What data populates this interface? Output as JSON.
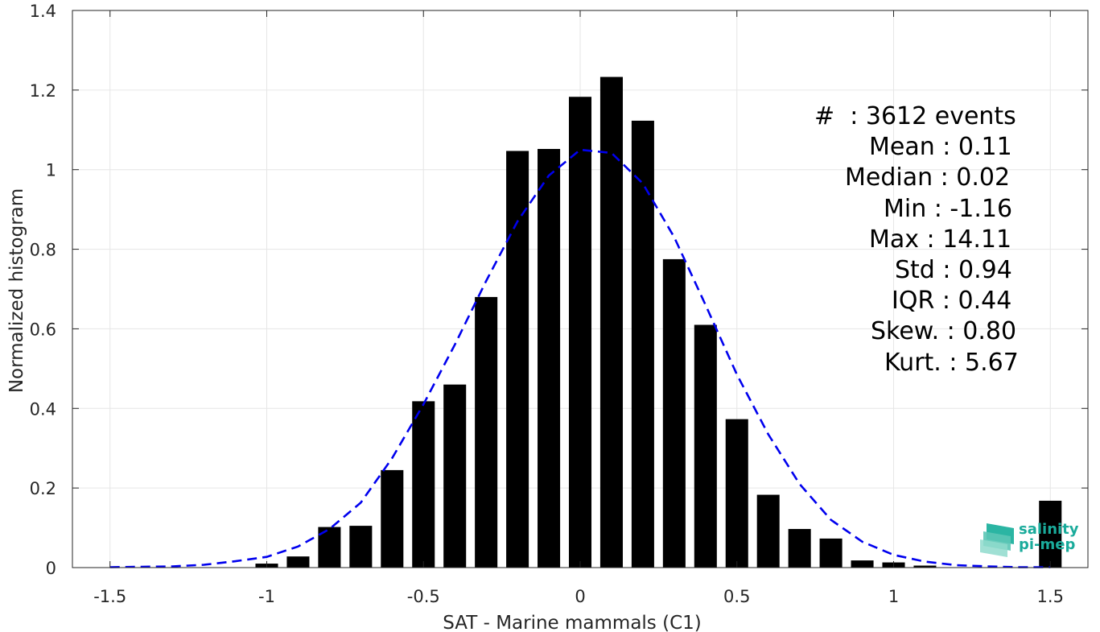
{
  "chart_data": {
    "type": "bar",
    "xlabel": "SAT - Marine mammals (C1)",
    "ylabel": "Normalized histogram",
    "xlim": [
      -1.62,
      1.62
    ],
    "ylim": [
      0,
      1.4
    ],
    "xticks": [
      -1.5,
      -1,
      -0.5,
      0,
      0.5,
      1,
      1.5
    ],
    "xtick_labels": [
      "-1.5",
      "-1",
      "-0.5",
      "0",
      "0.5",
      "1",
      "1.5"
    ],
    "yticks": [
      0,
      0.2,
      0.4,
      0.6,
      0.8,
      1,
      1.2,
      1.4
    ],
    "ytick_labels": [
      "0",
      "0.2",
      "0.4",
      "0.6",
      "0.8",
      "1",
      "1.2",
      "1.4"
    ],
    "grid": true,
    "bar_color": "#000000",
    "bars": {
      "x": [
        -1.5,
        -1.4,
        -1.3,
        -1.2,
        -1.1,
        -1.0,
        -0.9,
        -0.8,
        -0.7,
        -0.6,
        -0.5,
        -0.4,
        -0.3,
        -0.2,
        -0.1,
        0.0,
        0.1,
        0.2,
        0.3,
        0.4,
        0.5,
        0.6,
        0.7,
        0.8,
        0.9,
        1.0,
        1.1,
        1.2,
        1.3,
        1.4,
        1.5
      ],
      "values": [
        0,
        0,
        0,
        0,
        0,
        0.01,
        0.028,
        0.102,
        0.105,
        0.245,
        0.418,
        0.46,
        0.68,
        1.047,
        1.052,
        1.183,
        1.233,
        1.123,
        0.775,
        0.61,
        0.373,
        0.183,
        0.097,
        0.073,
        0.018,
        0.013,
        0.005,
        0,
        0,
        0,
        0.168
      ]
    },
    "fit": {
      "name": "",
      "style": "dashed",
      "color": "#0000ee",
      "x": [
        -1.5,
        -1.4,
        -1.3,
        -1.2,
        -1.1,
        -1.0,
        -0.9,
        -0.8,
        -0.7,
        -0.6,
        -0.5,
        -0.4,
        -0.3,
        -0.2,
        -0.1,
        0.0,
        0.1,
        0.2,
        0.3,
        0.4,
        0.5,
        0.6,
        0.7,
        0.8,
        0.9,
        1.0,
        1.1,
        1.2,
        1.3,
        1.4,
        1.5
      ],
      "y": [
        0.001,
        0.002,
        0.003,
        0.007,
        0.016,
        0.027,
        0.053,
        0.097,
        0.163,
        0.275,
        0.41,
        0.56,
        0.72,
        0.87,
        0.985,
        1.05,
        1.042,
        0.965,
        0.83,
        0.66,
        0.485,
        0.335,
        0.21,
        0.12,
        0.065,
        0.032,
        0.015,
        0.006,
        0.003,
        0.001,
        0.001
      ]
    }
  },
  "stats": {
    "count": "#  : 3612 events",
    "mean": "Mean : 0.11",
    "median": "Median : 0.02",
    "min": "Min : -1.16",
    "max": "Max : 14.11",
    "std": "Std : 0.94",
    "iqr": "IQR : 0.44",
    "skew": "Skew. : 0.80",
    "kurt": "Kurt. : 5.67"
  },
  "logo": {
    "line1": "salinity",
    "line2": "pi-mep",
    "color": "#1aab9b"
  }
}
